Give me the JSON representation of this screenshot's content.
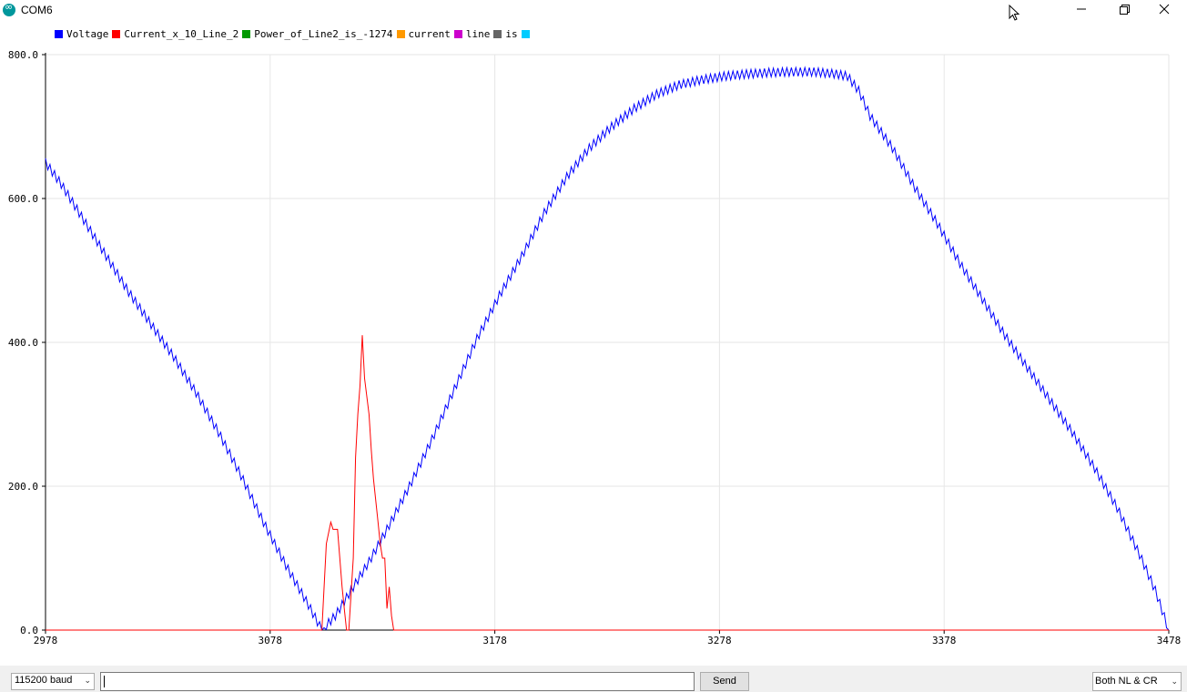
{
  "window": {
    "title": "COM6",
    "app_icon": "arduino-icon",
    "controls": [
      "minimize-icon",
      "maximize-icon",
      "close-icon"
    ]
  },
  "legend": [
    {
      "label": "Voltage",
      "color": "#0000ff"
    },
    {
      "label": "Current_x_10_Line_2",
      "color": "#ff0000"
    },
    {
      "label": "Power_of_Line2_is_-1274",
      "color": "#009900"
    },
    {
      "label": "current",
      "color": "#ff9900"
    },
    {
      "label": "line",
      "color": "#cc00cc"
    },
    {
      "label": "is",
      "color": "#666666"
    },
    {
      "label": "",
      "color": "#00ccff"
    }
  ],
  "chart_data": {
    "type": "line",
    "xlim": [
      2978,
      3478
    ],
    "ylim": [
      0,
      800
    ],
    "x_ticks": [
      "2978",
      "3078",
      "3178",
      "3278",
      "3378",
      "3478"
    ],
    "y_ticks": [
      "0.0",
      "200.0",
      "400.0",
      "600.0",
      "800.0"
    ],
    "grid": true,
    "legend_position": "top-left",
    "series": [
      {
        "name": "Voltage",
        "color": "#0000ff",
        "anchors": [
          [
            2978,
            650
          ],
          [
            2985,
            620
          ],
          [
            2995,
            570
          ],
          [
            3005,
            520
          ],
          [
            3015,
            470
          ],
          [
            3025,
            425
          ],
          [
            3035,
            380
          ],
          [
            3045,
            330
          ],
          [
            3055,
            275
          ],
          [
            3065,
            215
          ],
          [
            3075,
            150
          ],
          [
            3085,
            90
          ],
          [
            3095,
            35
          ],
          [
            3101,
            0
          ],
          [
            3107,
            20
          ],
          [
            3115,
            60
          ],
          [
            3122,
            95
          ],
          [
            3130,
            140
          ],
          [
            3140,
            200
          ],
          [
            3150,
            265
          ],
          [
            3160,
            335
          ],
          [
            3170,
            405
          ],
          [
            3180,
            465
          ],
          [
            3190,
            520
          ],
          [
            3200,
            580
          ],
          [
            3210,
            630
          ],
          [
            3220,
            670
          ],
          [
            3230,
            700
          ],
          [
            3240,
            725
          ],
          [
            3250,
            745
          ],
          [
            3260,
            758
          ],
          [
            3270,
            765
          ],
          [
            3280,
            770
          ],
          [
            3290,
            773
          ],
          [
            3300,
            775
          ],
          [
            3310,
            776
          ],
          [
            3320,
            776
          ],
          [
            3330,
            773
          ],
          [
            3335,
            770
          ],
          [
            3340,
            750
          ],
          [
            3345,
            715
          ],
          [
            3355,
            670
          ],
          [
            3365,
            615
          ],
          [
            3375,
            565
          ],
          [
            3385,
            510
          ],
          [
            3395,
            460
          ],
          [
            3405,
            410
          ],
          [
            3415,
            365
          ],
          [
            3425,
            320
          ],
          [
            3435,
            275
          ],
          [
            3445,
            225
          ],
          [
            3455,
            170
          ],
          [
            3465,
            105
          ],
          [
            3472,
            55
          ],
          [
            3478,
            0
          ]
        ]
      },
      {
        "name": "Current_x_10_Line_2",
        "color": "#ff0000",
        "points": [
          [
            2978,
            0
          ],
          [
            3100,
            0
          ],
          [
            3101,
            0
          ],
          [
            3103,
            120
          ],
          [
            3105,
            150
          ],
          [
            3106,
            140
          ],
          [
            3108,
            140
          ],
          [
            3109,
            100
          ],
          [
            3110,
            60
          ],
          [
            3111,
            30
          ],
          [
            3112,
            0
          ],
          [
            3113,
            0
          ],
          [
            3115,
            100
          ],
          [
            3116,
            240
          ],
          [
            3117,
            300
          ],
          [
            3118,
            340
          ],
          [
            3119,
            410
          ],
          [
            3120,
            350
          ],
          [
            3122,
            300
          ],
          [
            3123,
            250
          ],
          [
            3124,
            210
          ],
          [
            3125,
            180
          ],
          [
            3126,
            150
          ],
          [
            3127,
            120
          ],
          [
            3128,
            100
          ],
          [
            3129,
            100
          ],
          [
            3130,
            30
          ],
          [
            3131,
            60
          ],
          [
            3132,
            20
          ],
          [
            3133,
            0
          ],
          [
            3478,
            0
          ]
        ]
      }
    ]
  },
  "bottom_bar": {
    "baud": "115200 baud",
    "input_value": "",
    "send_label": "Send",
    "line_ending": "Both NL & CR"
  }
}
